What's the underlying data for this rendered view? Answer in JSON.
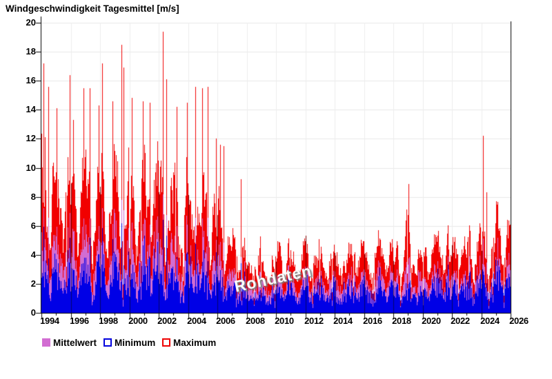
{
  "title": "Windgeschwindigkeit Tagesmittel [m/s]",
  "watermark": "Rohdaten",
  "legend": [
    {
      "label": "Mittelwert",
      "color": "#d26dd2",
      "fill": true
    },
    {
      "label": "Minimum",
      "color": "#0000dd",
      "fill": false
    },
    {
      "label": "Maximum",
      "color": "#ee0000",
      "fill": false
    }
  ],
  "chart_data": {
    "type": "bar",
    "title": "Windgeschwindigkeit Tagesmittel [m/s]",
    "unit": "m/s",
    "xlim": [
      1994,
      2026
    ],
    "ylim": [
      0,
      20
    ],
    "y_ticks": [
      0,
      2,
      4,
      6,
      8,
      10,
      12,
      14,
      16,
      18,
      20
    ],
    "x_ticks_major": [
      1994,
      1996,
      1998,
      2000,
      2002,
      2004,
      2006,
      2008,
      2010,
      2012,
      2014,
      2016,
      2018,
      2020,
      2022,
      2024,
      2026
    ],
    "minor_tick_every_years": 1,
    "grid": true,
    "legend_position": "bottom",
    "series": [
      {
        "name": "Maximum",
        "role": "max",
        "color": "#f10000"
      },
      {
        "name": "Mittelwert",
        "role": "mean",
        "color": "#d26dd2"
      },
      {
        "name": "Minimum",
        "role": "min",
        "color": "#0000e6"
      }
    ],
    "yearly_envelope": [
      {
        "year": 1994,
        "winter_max": 15.0,
        "summer_max": 6.5,
        "mean_frac": 0.52,
        "min_frac": 0.6
      },
      {
        "year": 1995,
        "winter_max": 14.0,
        "summer_max": 6.0,
        "mean_frac": 0.52,
        "min_frac": 0.6
      },
      {
        "year": 1996,
        "winter_max": 14.5,
        "summer_max": 6.0,
        "mean_frac": 0.52,
        "min_frac": 0.6
      },
      {
        "year": 1997,
        "winter_max": 14.5,
        "summer_max": 6.0,
        "mean_frac": 0.52,
        "min_frac": 0.6
      },
      {
        "year": 1998,
        "winter_max": 15.0,
        "summer_max": 6.2,
        "mean_frac": 0.52,
        "min_frac": 0.6
      },
      {
        "year": 1999,
        "winter_max": 15.5,
        "summer_max": 6.2,
        "mean_frac": 0.52,
        "min_frac": 0.6
      },
      {
        "year": 2000,
        "winter_max": 13.5,
        "summer_max": 6.0,
        "mean_frac": 0.52,
        "min_frac": 0.6
      },
      {
        "year": 2001,
        "winter_max": 14.0,
        "summer_max": 6.0,
        "mean_frac": 0.52,
        "min_frac": 0.6
      },
      {
        "year": 2002,
        "winter_max": 15.0,
        "summer_max": 6.0,
        "mean_frac": 0.52,
        "min_frac": 0.6
      },
      {
        "year": 2003,
        "winter_max": 13.5,
        "summer_max": 5.8,
        "mean_frac": 0.52,
        "min_frac": 0.6
      },
      {
        "year": 2004,
        "winter_max": 14.5,
        "summer_max": 5.8,
        "mean_frac": 0.52,
        "min_frac": 0.6
      },
      {
        "year": 2005,
        "winter_max": 13.5,
        "summer_max": 5.5,
        "mean_frac": 0.52,
        "min_frac": 0.6
      },
      {
        "year": 2006,
        "winter_max": 11.0,
        "summer_max": 4.2,
        "mean_frac": 0.52,
        "min_frac": 0.62
      },
      {
        "year": 2007,
        "winter_max": 7.2,
        "summer_max": 3.8,
        "mean_frac": 0.55,
        "min_frac": 0.62
      },
      {
        "year": 2008,
        "winter_max": 6.5,
        "summer_max": 3.6,
        "mean_frac": 0.58,
        "min_frac": 0.65
      },
      {
        "year": 2009,
        "winter_max": 6.2,
        "summer_max": 3.5,
        "mean_frac": 0.58,
        "min_frac": 0.65
      },
      {
        "year": 2010,
        "winter_max": 6.2,
        "summer_max": 3.4,
        "mean_frac": 0.58,
        "min_frac": 0.65
      },
      {
        "year": 2011,
        "winter_max": 6.3,
        "summer_max": 3.5,
        "mean_frac": 0.58,
        "min_frac": 0.65
      },
      {
        "year": 2012,
        "winter_max": 6.2,
        "summer_max": 3.5,
        "mean_frac": 0.58,
        "min_frac": 0.65
      },
      {
        "year": 2013,
        "winter_max": 6.5,
        "summer_max": 3.5,
        "mean_frac": 0.58,
        "min_frac": 0.65
      },
      {
        "year": 2014,
        "winter_max": 6.4,
        "summer_max": 3.5,
        "mean_frac": 0.58,
        "min_frac": 0.65
      },
      {
        "year": 2015,
        "winter_max": 6.7,
        "summer_max": 3.6,
        "mean_frac": 0.58,
        "min_frac": 0.65
      },
      {
        "year": 2016,
        "winter_max": 6.3,
        "summer_max": 3.5,
        "mean_frac": 0.58,
        "min_frac": 0.65
      },
      {
        "year": 2017,
        "winter_max": 6.5,
        "summer_max": 3.5,
        "mean_frac": 0.58,
        "min_frac": 0.65
      },
      {
        "year": 2018,
        "winter_max": 6.3,
        "summer_max": 3.5,
        "mean_frac": 0.58,
        "min_frac": 0.65
      },
      {
        "year": 2019,
        "winter_max": 7.5,
        "summer_max": 3.7,
        "mean_frac": 0.58,
        "min_frac": 0.65
      },
      {
        "year": 2020,
        "winter_max": 7.0,
        "summer_max": 3.7,
        "mean_frac": 0.58,
        "min_frac": 0.65
      },
      {
        "year": 2021,
        "winter_max": 7.8,
        "summer_max": 3.8,
        "mean_frac": 0.58,
        "min_frac": 0.66
      },
      {
        "year": 2022,
        "winter_max": 7.1,
        "summer_max": 3.7,
        "mean_frac": 0.58,
        "min_frac": 0.66
      },
      {
        "year": 2023,
        "winter_max": 7.6,
        "summer_max": 3.9,
        "mean_frac": 0.58,
        "min_frac": 0.66
      },
      {
        "year": 2024,
        "winter_max": 8.3,
        "summer_max": 4.2,
        "mean_frac": 0.58,
        "min_frac": 0.68
      },
      {
        "year": 2025,
        "winter_max": 7.8,
        "summer_max": 4.0,
        "mean_frac": 0.58,
        "min_frac": 0.68
      },
      {
        "year": 2026,
        "winter_max": 7.8,
        "summer_max": 4.0,
        "mean_frac": 0.58,
        "min_frac": 0.68
      }
    ],
    "notable_spikes": [
      {
        "x": 1994.15,
        "max": 17.2
      },
      {
        "x": 1994.25,
        "max": 12.1
      },
      {
        "x": 1994.45,
        "max": 15.6
      },
      {
        "x": 1995.05,
        "max": 14.1
      },
      {
        "x": 1995.95,
        "max": 16.4
      },
      {
        "x": 1996.15,
        "max": 13.3
      },
      {
        "x": 1996.85,
        "max": 15.5
      },
      {
        "x": 1997.3,
        "max": 15.5
      },
      {
        "x": 1997.9,
        "max": 14.3
      },
      {
        "x": 1998.15,
        "max": 17.2
      },
      {
        "x": 1998.85,
        "max": 14.6
      },
      {
        "x": 1999.45,
        "max": 18.5
      },
      {
        "x": 1999.6,
        "max": 16.9
      },
      {
        "x": 2000.15,
        "max": 14.8
      },
      {
        "x": 2000.9,
        "max": 14.6
      },
      {
        "x": 2001.4,
        "max": 14.5
      },
      {
        "x": 2002.3,
        "max": 19.4
      },
      {
        "x": 2002.5,
        "max": 16.1
      },
      {
        "x": 2003.2,
        "max": 14.2
      },
      {
        "x": 2003.95,
        "max": 14.5
      },
      {
        "x": 2004.5,
        "max": 15.6
      },
      {
        "x": 2004.95,
        "max": 15.5
      },
      {
        "x": 2005.35,
        "max": 15.6
      },
      {
        "x": 2005.9,
        "max": 12.0
      },
      {
        "x": 2006.2,
        "max": 11.6
      },
      {
        "x": 2006.4,
        "max": 11.5
      },
      {
        "x": 2007.6,
        "max": 9.2
      },
      {
        "x": 2019.05,
        "max": 8.9
      },
      {
        "x": 2024.1,
        "max": 12.2
      },
      {
        "x": 2024.35,
        "max": 8.3
      },
      {
        "x": 2025.0,
        "max": 7.7
      }
    ]
  }
}
